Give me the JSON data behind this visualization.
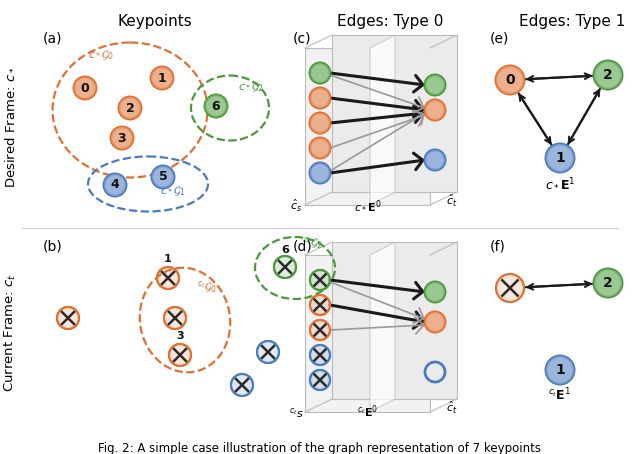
{
  "col_titles": [
    "Keypoints",
    "Edges: Type 0",
    "Edges: Type 1"
  ],
  "row_labels_top": "Desired Frame: $c_*$",
  "row_labels_bot": "Current Frame: $c_t$",
  "footer": "Fig. 2: A simple case illustration of the graph representation of 7 keypoints",
  "orange": "#E07030",
  "green": "#4A9A3A",
  "blue": "#4A7ABF",
  "arrow_dark": "#1A1A1A",
  "arrow_gray": "#999999"
}
